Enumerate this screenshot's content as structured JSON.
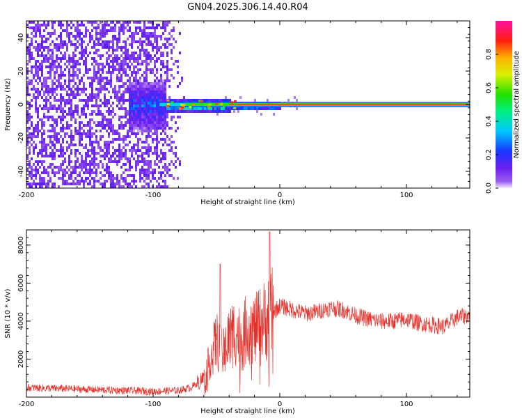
{
  "figure": {
    "title": "GN04.2025.306.14.40.R04"
  },
  "chart_data": [
    {
      "type": "heatmap",
      "xlabel": "Height of straight line (km)",
      "ylabel": "Frequency (Hz)",
      "xlim": [
        -200,
        150
      ],
      "ylim": [
        -50,
        50
      ],
      "xticks": [
        -200,
        -100,
        0,
        100
      ],
      "yticks": [
        -40,
        -20,
        0,
        20,
        40
      ],
      "colorbar": {
        "label": "Normalized spectral amplitude",
        "range": [
          0,
          1
        ],
        "ticks": [
          "0.0",
          "0.2",
          "0.4",
          "0.6",
          "0.8"
        ],
        "colormap": "rainbow (violet-blue-cyan-green-yellow-red-magenta)"
      },
      "features": {
        "noise_region_x": [
          -200,
          -75
        ],
        "noise_amplitude": 0.1,
        "transition_region_x": [
          -120,
          -40
        ],
        "signal_line_frequency": 0,
        "signal_line_start_x": -95,
        "signal_line_amplitude": 0.85
      },
      "grid": false
    },
    {
      "type": "line",
      "xlabel": "Height of straight line (km)",
      "ylabel": "SNR (10 * v/v)",
      "xlim": [
        -200,
        150
      ],
      "ylim": [
        0,
        8800
      ],
      "xticks": [
        -200,
        -100,
        0,
        100
      ],
      "yticks": [
        2000,
        4000,
        6000,
        8000
      ],
      "series": [
        {
          "color": "#e8302a",
          "profile_x": [
            -200,
            -150,
            -100,
            -80,
            -70,
            -60,
            -55,
            -50,
            -45,
            -40,
            -35,
            -30,
            -25,
            -20,
            -15,
            -10,
            -5,
            0,
            10,
            20,
            30,
            40,
            50,
            60,
            70,
            80,
            90,
            100,
            110,
            120,
            130,
            140,
            150
          ],
          "profile_y": [
            500,
            400,
            300,
            350,
            500,
            1000,
            2000,
            3000,
            2200,
            3200,
            3500,
            3000,
            3800,
            3500,
            3800,
            4200,
            4500,
            4800,
            4600,
            4400,
            4500,
            4700,
            4600,
            4300,
            4100,
            4000,
            4000,
            4100,
            3900,
            3800,
            3700,
            4200,
            4300
          ],
          "peaks": [
            {
              "x": -47,
              "y": 7000
            },
            {
              "x": -8,
              "y": 8700
            }
          ]
        }
      ],
      "grid": false
    }
  ]
}
